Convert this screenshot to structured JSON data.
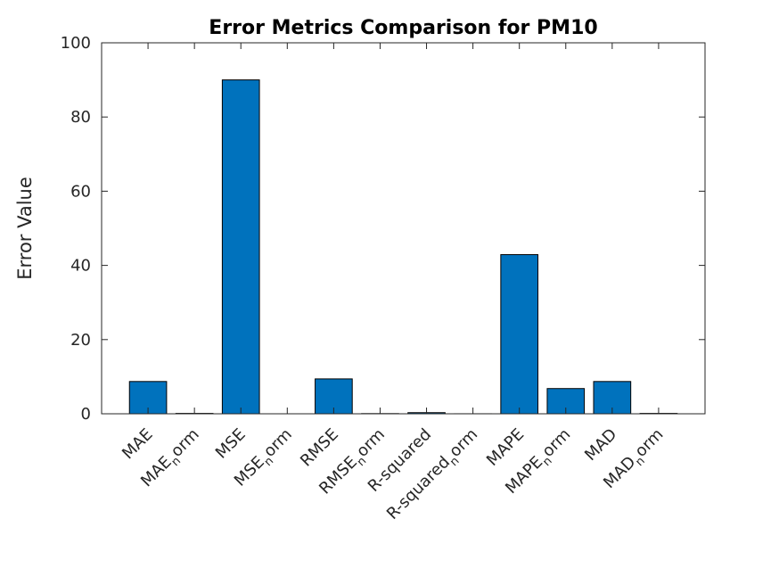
{
  "chart_data": {
    "type": "bar",
    "title": "Error Metrics Comparison for PM10",
    "xlabel": "",
    "ylabel": "Error Value",
    "ylim": [
      0,
      100
    ],
    "yticks": [
      "0",
      "20",
      "40",
      "60",
      "80",
      "100"
    ],
    "grid": false,
    "categories": [
      {
        "main": "MAE",
        "sub": "",
        "rest": ""
      },
      {
        "main": "MAE",
        "sub": "n",
        "rest": "orm"
      },
      {
        "main": "MSE",
        "sub": "",
        "rest": ""
      },
      {
        "main": "MSE",
        "sub": "n",
        "rest": "orm"
      },
      {
        "main": "RMSE",
        "sub": "",
        "rest": ""
      },
      {
        "main": "RMSE",
        "sub": "n",
        "rest": "orm"
      },
      {
        "main": "R-squared",
        "sub": "",
        "rest": ""
      },
      {
        "main": "R-squared",
        "sub": "n",
        "rest": "orm"
      },
      {
        "main": "MAPE",
        "sub": "",
        "rest": ""
      },
      {
        "main": "MAPE",
        "sub": "n",
        "rest": "orm"
      },
      {
        "main": "MAD",
        "sub": "",
        "rest": ""
      },
      {
        "main": "MAD",
        "sub": "n",
        "rest": "orm"
      }
    ],
    "values": [
      8.7,
      0.1,
      90.0,
      0.0,
      9.4,
      0.05,
      0.3,
      0.01,
      42.9,
      6.8,
      8.7,
      0.1
    ],
    "bar_color": "#0072bd"
  }
}
